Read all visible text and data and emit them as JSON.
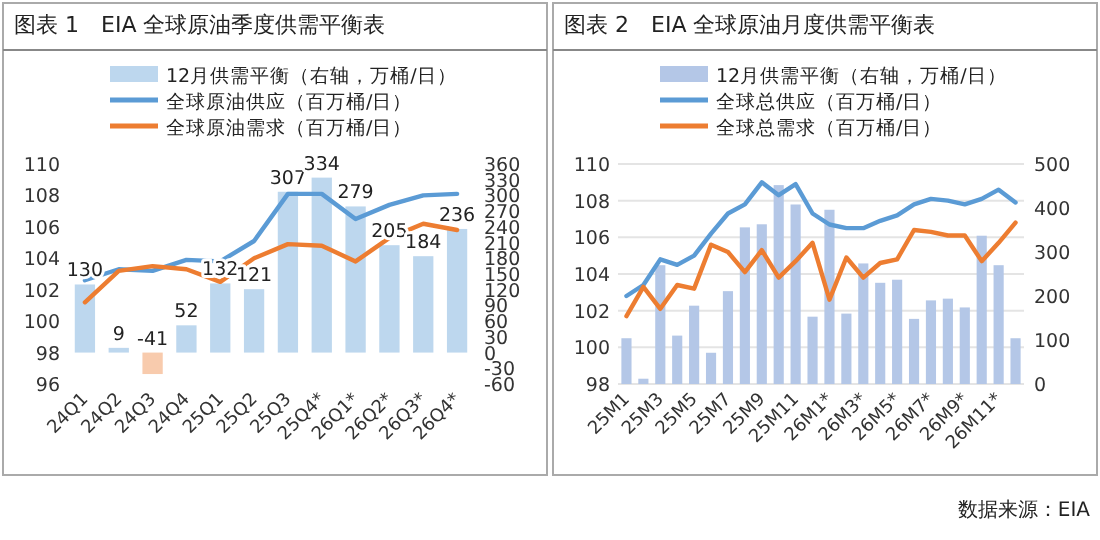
{
  "chart_data": [
    {
      "type": "bar",
      "title": "图表 1　EIA 全球原油季度供需平衡表",
      "categories": [
        "24Q1",
        "24Q2",
        "24Q3",
        "24Q4",
        "25Q1",
        "25Q2",
        "25Q3",
        "25Q4*",
        "26Q1*",
        "26Q2*",
        "26Q3*",
        "26Q4*"
      ],
      "series": [
        {
          "name": "12月供需平衡（右轴，万桶/日）",
          "axis": "y2",
          "color": "#bdd7ee",
          "colors": [
            "#bdd7ee",
            "#bdd7ee",
            "#f8cbad",
            "#bdd7ee",
            "#bdd7ee",
            "#bdd7ee",
            "#bdd7ee",
            "#bdd7ee",
            "#bdd7ee",
            "#bdd7ee",
            "#bdd7ee",
            "#bdd7ee"
          ],
          "values": [
            130,
            9,
            -41,
            52,
            132,
            121,
            307,
            334,
            279,
            205,
            184,
            236
          ],
          "value_labels": [
            "130",
            "9",
            "-41",
            "52",
            "132",
            "121",
            "307",
            "334",
            "279",
            "205",
            "184",
            "236"
          ]
        },
        {
          "name": "全球原油供应（百万桶/日）",
          "type": "line",
          "color": "#5b9bd5",
          "values": [
            102.6,
            103.3,
            103.2,
            103.9,
            103.8,
            105.1,
            108.1,
            108.1,
            106.5,
            107.4,
            108.0,
            108.1
          ]
        },
        {
          "name": "全球原油需求（百万桶/日）",
          "type": "line",
          "color": "#ed7d31",
          "values": [
            101.2,
            103.2,
            103.5,
            103.3,
            102.5,
            104.0,
            104.9,
            104.8,
            103.8,
            105.3,
            106.2,
            105.8
          ]
        }
      ],
      "ylim": [
        96,
        110
      ],
      "yticks": [
        96,
        98,
        100,
        102,
        104,
        106,
        108,
        110
      ],
      "y2lim": [
        -60,
        360
      ],
      "y2ticks": [
        -60,
        -30,
        0,
        30,
        60,
        90,
        120,
        150,
        180,
        210,
        240,
        270,
        300,
        330,
        360
      ],
      "legend": "top",
      "grid": false
    },
    {
      "type": "bar",
      "title": "图表 2　EIA 全球原油月度供需平衡表",
      "categories": [
        "25M1",
        null,
        "25M3",
        null,
        "25M5",
        null,
        "25M7",
        null,
        "25M9",
        null,
        "25M11",
        null,
        "26M1*",
        null,
        "26M3*",
        null,
        "26M5*",
        null,
        "26M7*",
        null,
        "26M9*",
        null,
        "26M11*",
        null
      ],
      "series": [
        {
          "name": "12月供需平衡（右轴，万桶/日）",
          "axis": "y2",
          "color": "#b4c7e7",
          "values": [
            104,
            12,
            270,
            110,
            178,
            71,
            211,
            356,
            363,
            452,
            408,
            153,
            396,
            160,
            274,
            230,
            237,
            148,
            190,
            194,
            174,
            337,
            270,
            104
          ]
        },
        {
          "name": "全球总供应（百万桶/日）",
          "type": "line",
          "color": "#5b9bd5",
          "values": [
            102.8,
            103.4,
            104.8,
            104.5,
            105.0,
            106.2,
            107.3,
            107.8,
            109.0,
            108.3,
            108.9,
            107.3,
            106.7,
            106.5,
            106.5,
            106.9,
            107.2,
            107.8,
            108.1,
            108.0,
            107.8,
            108.1,
            108.6,
            107.9
          ]
        },
        {
          "name": "全球总需求（百万桶/日）",
          "type": "line",
          "color": "#ed7d31",
          "values": [
            101.7,
            103.3,
            102.1,
            103.4,
            103.2,
            105.6,
            105.2,
            104.1,
            105.3,
            103.8,
            104.7,
            105.7,
            102.6,
            104.9,
            103.8,
            104.6,
            104.8,
            106.4,
            106.3,
            106.1,
            106.1,
            104.7,
            105.7,
            106.8
          ]
        }
      ],
      "ylim": [
        98,
        110
      ],
      "yticks": [
        98,
        100,
        102,
        104,
        106,
        108,
        110
      ],
      "y2lim": [
        0,
        500
      ],
      "y2ticks": [
        0,
        100,
        200,
        300,
        400,
        500
      ],
      "legend": "top",
      "grid": "y",
      "annotations": [
        "数据来源：EIA"
      ]
    }
  ]
}
